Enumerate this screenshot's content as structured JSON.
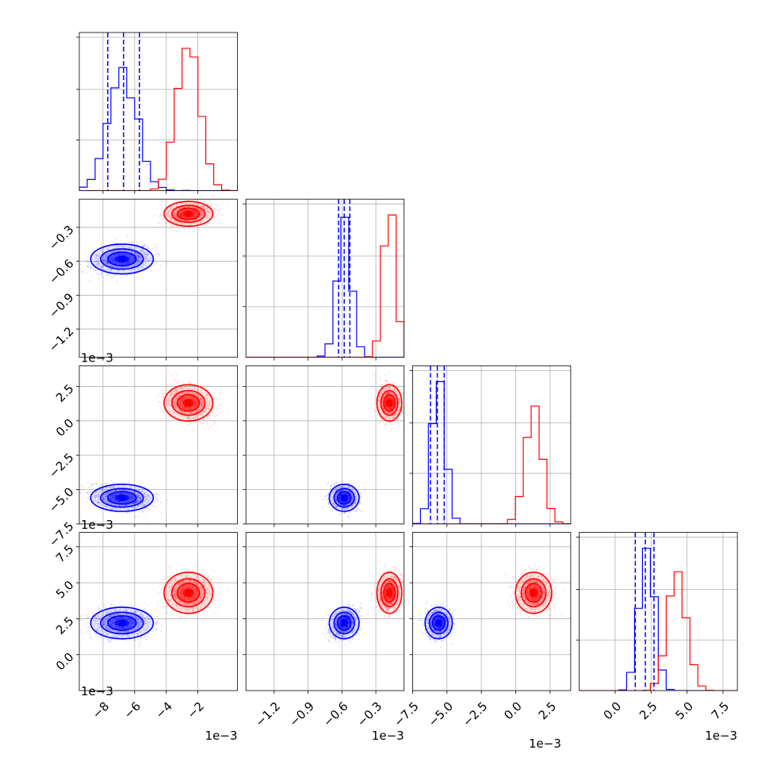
{
  "chart_data": {
    "type": "corner",
    "title": "",
    "parameters": [
      {
        "index": 0,
        "range": [
          -0.0095,
          0.0005
        ],
        "ticks": [
          -0.008,
          -0.006,
          -0.004,
          -0.002
        ],
        "tick_labels": [
          "−8",
          "−6",
          "−4",
          "−2"
        ],
        "offset_label": "1e−3"
      },
      {
        "index": 1,
        "range": [
          -0.00145,
          -5e-05
        ],
        "ticks": [
          -0.0012,
          -0.0009,
          -0.0006,
          -0.0003
        ],
        "tick_labels": [
          "−1.2",
          "−0.9",
          "−0.6",
          "−0.3"
        ],
        "offset_label": "1e−3"
      },
      {
        "index": 2,
        "range": [
          -0.0075,
          0.004
        ],
        "ticks": [
          -0.0075,
          -0.005,
          -0.0025,
          0,
          0.0025
        ],
        "tick_labels": [
          "−7.5",
          "−5.0",
          "−2.5",
          "0.0",
          "2.5"
        ],
        "offset_label": "1e−3"
      },
      {
        "index": 3,
        "range": [
          -0.0025,
          0.0085
        ],
        "ticks": [
          0,
          0.0025,
          0.005,
          0.0075
        ],
        "tick_labels": [
          "0.0",
          "2.5",
          "5.0",
          "7.5"
        ],
        "offset_label": "1e−3"
      }
    ],
    "series": [
      {
        "name": "blue",
        "color": "#0000ff",
        "mean": [
          -0.0068,
          -0.00058,
          -0.0056,
          0.0022
        ],
        "std": [
          0.0009,
          6e-05,
          0.00045,
          0.0005
        ],
        "quantiles_16_50_84": [
          [
            -0.0077,
            -0.0067,
            -0.0057
          ],
          [
            -0.00063,
            -0.00058,
            -0.00053
          ],
          [
            -0.0062,
            -0.0057,
            -0.0052
          ],
          [
            0.0014,
            0.0021,
            0.0027
          ]
        ]
      },
      {
        "name": "red",
        "color": "#ff0000",
        "mean": [
          -0.0026,
          -0.00018,
          0.0013,
          0.0043
        ],
        "std": [
          0.0007,
          5e-05,
          0.0006,
          0.00065
        ],
        "quantiles_16_50_84": null
      }
    ],
    "grid": true
  }
}
